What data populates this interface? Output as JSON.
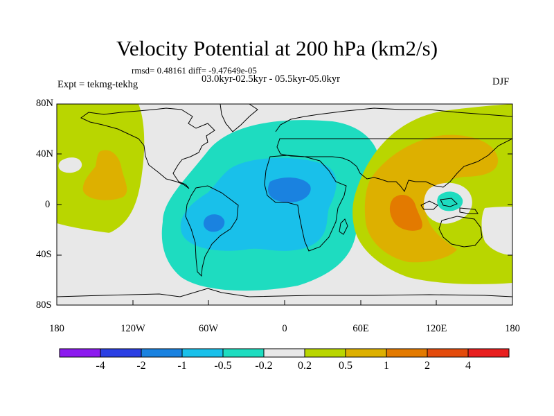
{
  "title": "Velocity Potential at 200 hPa (km2/s)",
  "stats": "rmsd= 0.48161 diff= -9.47649e-05",
  "expt": "Expt = tekmg-tekhg",
  "period": "03.0kyr-02.5kyr - 05.5kyr-05.0kyr",
  "season": "DJF",
  "lat_labels": [
    "80N",
    "40N",
    "0",
    "40S",
    "80S"
  ],
  "lon_labels": [
    "180",
    "120W",
    "60W",
    "0",
    "60E",
    "120E",
    "180"
  ],
  "colorbar": {
    "labels": [
      "-4",
      "-2",
      "-1",
      "-0.5",
      "-0.2",
      "0.2",
      "0.5",
      "1",
      "2",
      "4"
    ],
    "colors": [
      "#8c1aef",
      "#2b3fe3",
      "#1a82e0",
      "#19c0ea",
      "#1edcc0",
      "#e8e8e8",
      "#b9d600",
      "#ddb000",
      "#e37a00",
      "#e34b0c",
      "#e81f1f"
    ]
  }
}
